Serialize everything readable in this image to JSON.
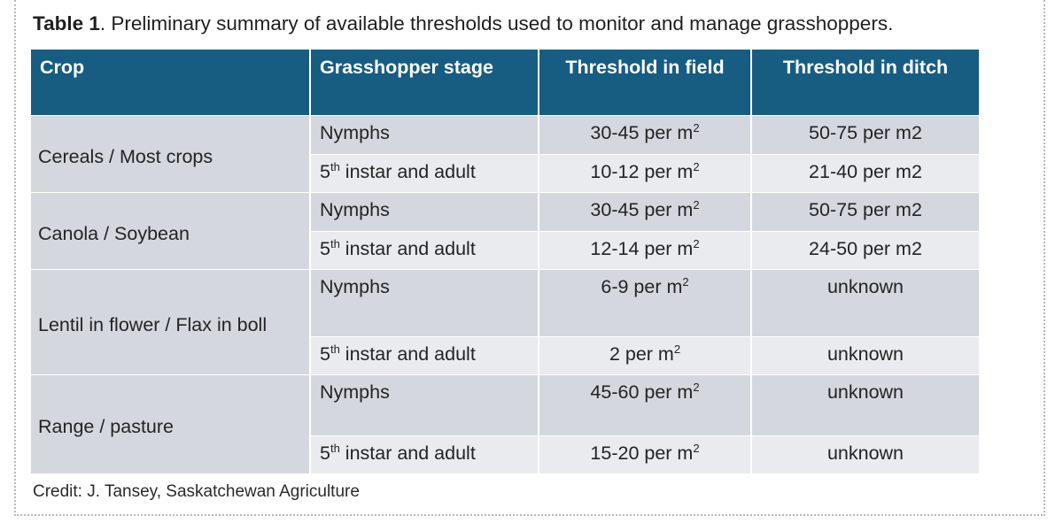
{
  "caption": {
    "label": "Table 1",
    "text": ". Preliminary summary of available thresholds used to monitor and manage grasshoppers."
  },
  "table": {
    "headers": [
      "Crop",
      "Grasshopper stage",
      "Threshold in field",
      "Threshold in ditch"
    ],
    "groups": [
      {
        "crop": "Cereals / Most crops",
        "rows": [
          {
            "stage": "Nymphs",
            "stage_sup": "",
            "stage_rest": "",
            "field": "30-45 per m",
            "field_sup": "2",
            "ditch": "50-75 per m2"
          },
          {
            "stage": "5",
            "stage_sup": "th",
            "stage_rest": " instar and adult",
            "field": "10-12 per m",
            "field_sup": "2",
            "ditch": "21-40 per m2"
          }
        ]
      },
      {
        "crop": "Canola / Soybean",
        "rows": [
          {
            "stage": "Nymphs",
            "stage_sup": "",
            "stage_rest": "",
            "field": "30-45 per m",
            "field_sup": "2",
            "ditch": "50-75 per m2"
          },
          {
            "stage": "5",
            "stage_sup": "th",
            "stage_rest": " instar and adult",
            "field": "12-14 per m",
            "field_sup": "2",
            "ditch": "24-50 per m2"
          }
        ]
      },
      {
        "crop": "Lentil in flower / Flax in boll",
        "rows": [
          {
            "stage": "Nymphs",
            "stage_sup": "",
            "stage_rest": "",
            "field": "6-9 per m",
            "field_sup": "2",
            "ditch": "unknown"
          },
          {
            "stage": "5",
            "stage_sup": "th",
            "stage_rest": " instar and adult",
            "field": "2 per m",
            "field_sup": "2",
            "ditch": "unknown"
          }
        ]
      },
      {
        "crop": "Range / pasture",
        "rows": [
          {
            "stage": "Nymphs",
            "stage_sup": "",
            "stage_rest": "",
            "field": "45-60  per m",
            "field_sup": "2",
            "ditch": "unknown"
          },
          {
            "stage": "5",
            "stage_sup": "th",
            "stage_rest": " instar and adult",
            "field": "15-20 per m",
            "field_sup": "2",
            "ditch": "unknown"
          }
        ]
      }
    ]
  },
  "credit": "Credit: J. Tansey, Saskatchewan Agriculture",
  "colors": {
    "header_bg": "#175d82",
    "row_dark": "#d4d8de",
    "row_light": "#e9ebee"
  }
}
